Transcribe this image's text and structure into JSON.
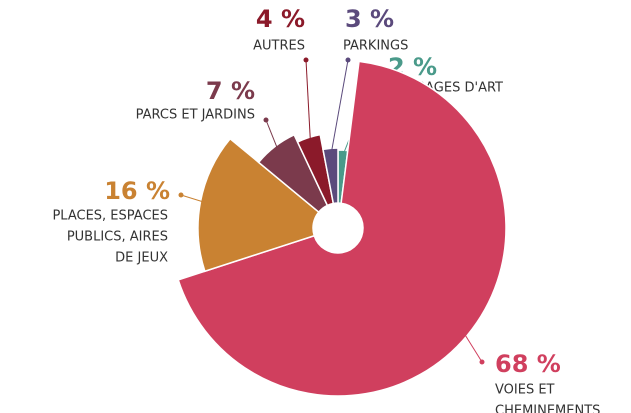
{
  "chart_data": {
    "type": "pie",
    "labels": [
      [
        "OUVRAGES D'ART"
      ],
      [
        "VOIES ET",
        "CHEMINEMENTS"
      ],
      [
        "PLACES, ESPACES",
        "PUBLICS, AIRES",
        "DE JEUX"
      ],
      [
        "PARCS ET JARDINS"
      ],
      [
        "AUTRES"
      ],
      [
        "PARKINGS"
      ]
    ],
    "values": [
      2,
      68,
      16,
      7,
      4,
      3
    ],
    "value_labels": [
      "2 %",
      "68 %",
      "16 %",
      "7 %",
      "4 %",
      "3 %"
    ],
    "colors": [
      "#4a9a8a",
      "#d03f5e",
      "#c98232",
      "#7b3a4c",
      "#8b1a2a",
      "#5b4a7c"
    ]
  }
}
